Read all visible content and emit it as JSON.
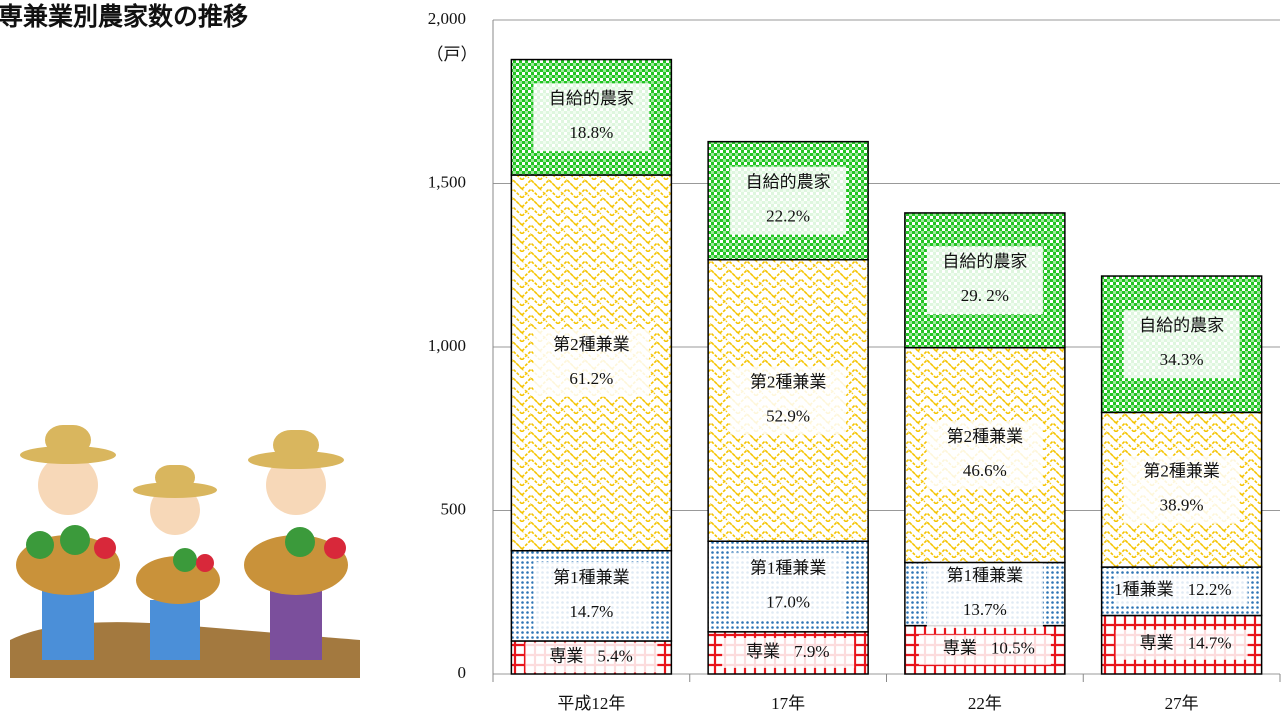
{
  "chart_data": {
    "type": "stacked_bar",
    "title": "専兼業別農家数の推移",
    "y_unit": "（戸）",
    "categories": [
      "平成12年",
      "17年",
      "22年",
      "27年"
    ],
    "ylim": [
      0,
      2000
    ],
    "yticks": [
      0,
      500,
      {
        "value": 1000,
        "label": "1,000"
      },
      {
        "value": 1500,
        "label": "1,500"
      },
      {
        "value": 2000,
        "label": "2,000"
      }
    ],
    "grid": true,
    "series": [
      {
        "color": "#e8141b",
        "labels": [
          "専業",
          "専業",
          "専業",
          "専業"
        ],
        "values": [
          101,
          129,
          148,
          179
        ],
        "share_labels": [
          "5.4%",
          "7.9%",
          "10.5%",
          "14.7%"
        ]
      },
      {
        "color": "#2e75b6",
        "labels": [
          "第1種兼業",
          "第1種兼業",
          "第1種兼業",
          "1種兼業"
        ],
        "values": [
          276,
          277,
          193,
          148
        ],
        "share_labels": [
          "14.7%",
          "17.0%",
          "13.7%",
          "12.2%"
        ]
      },
      {
        "color": "#f5c400",
        "labels": [
          "第2種兼業",
          "第2種兼業",
          "第2種兼業",
          "第2種兼業"
        ],
        "values": [
          1149,
          861,
          657,
          473
        ],
        "share_labels": [
          "61.2%",
          "52.9%",
          "46.6%",
          "38.9%"
        ]
      },
      {
        "color": "#22c422",
        "labels": [
          "自給的農家",
          "自給的農家",
          "自給的農家",
          "自給的農家"
        ],
        "values": [
          353,
          361,
          412,
          417
        ],
        "share_labels": [
          "18.8%",
          "22.2%",
          "29. 2%",
          "34.3%"
        ]
      }
    ]
  }
}
